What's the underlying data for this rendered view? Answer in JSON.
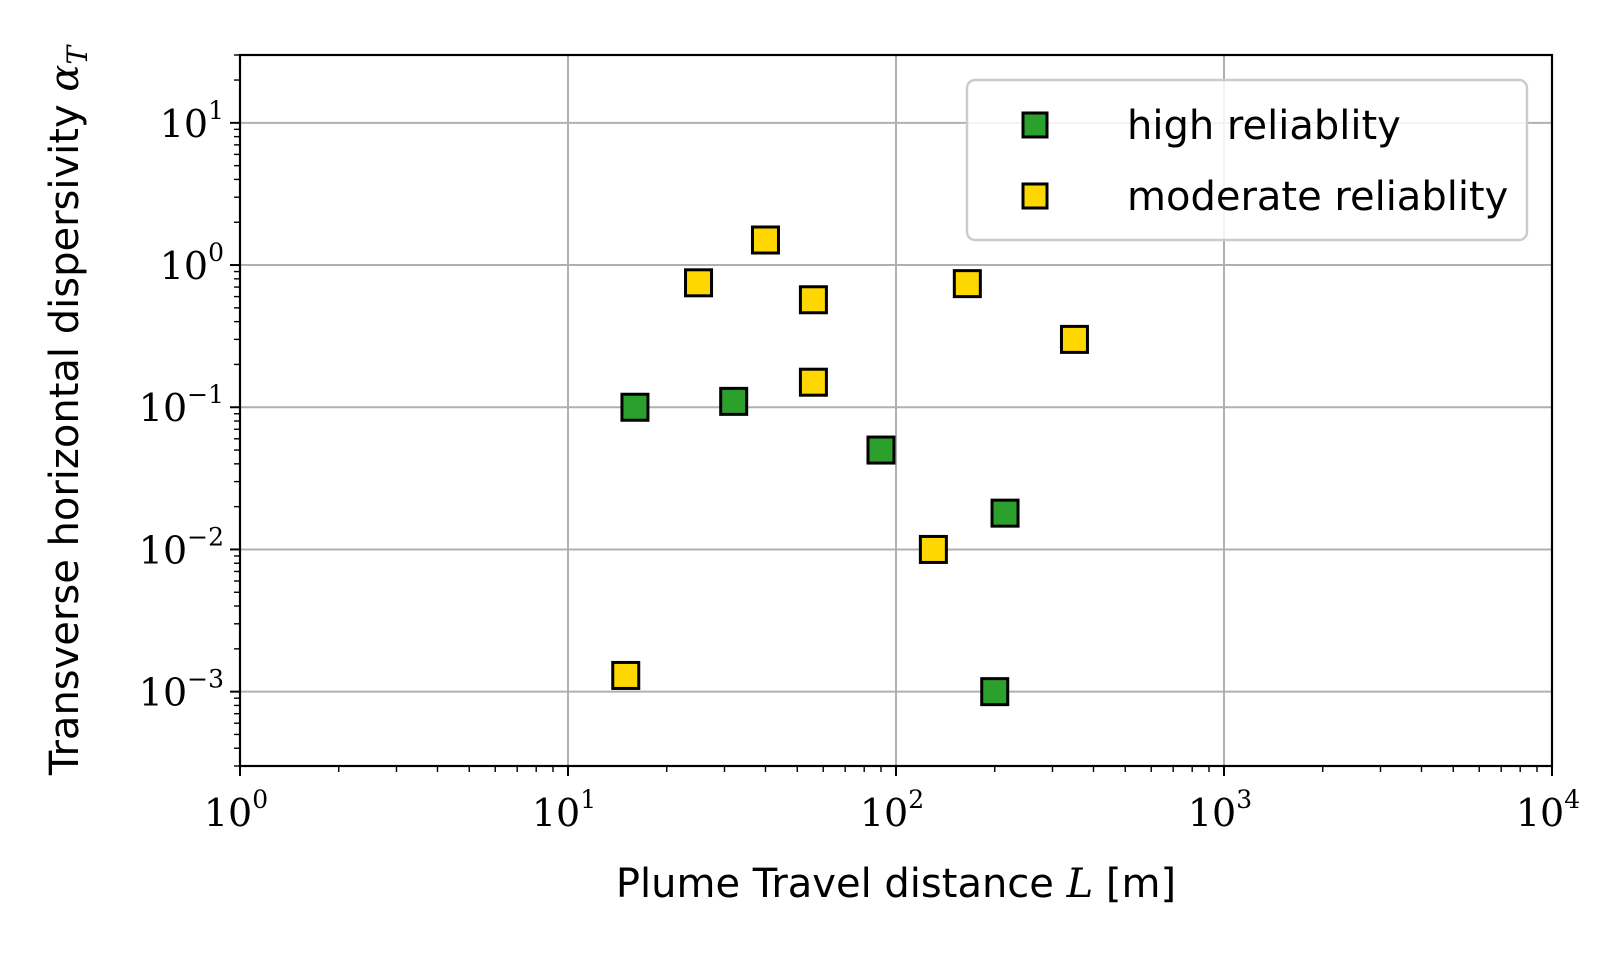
{
  "chart_data": {
    "type": "scatter",
    "title": "",
    "xlabel": {
      "prefix": "Plume Travel distance ",
      "symbol": "L",
      "suffix": " [m]"
    },
    "ylabel": {
      "prefix": "Transverse horizontal dispersivity ",
      "symbol": "α",
      "subscript": "T"
    },
    "x_scale": "log",
    "y_scale": "log",
    "xlim": [
      1,
      10000
    ],
    "ylim": [
      0.0003,
      30
    ],
    "grid": true,
    "legend_position": "top-right",
    "x_ticks": [
      {
        "value": 1,
        "base": "10",
        "exp": "0"
      },
      {
        "value": 10,
        "base": "10",
        "exp": "1"
      },
      {
        "value": 100,
        "base": "10",
        "exp": "2"
      },
      {
        "value": 1000,
        "base": "10",
        "exp": "3"
      },
      {
        "value": 10000,
        "base": "10",
        "exp": "4"
      }
    ],
    "y_ticks": [
      {
        "value": 0.001,
        "base": "10",
        "exp": "−3"
      },
      {
        "value": 0.01,
        "base": "10",
        "exp": "−2"
      },
      {
        "value": 0.1,
        "base": "10",
        "exp": "−1"
      },
      {
        "value": 1,
        "base": "10",
        "exp": "0"
      },
      {
        "value": 10,
        "base": "10",
        "exp": "1"
      }
    ],
    "series": [
      {
        "name": "high reliablity",
        "color": "#2ca02c",
        "marker": "square",
        "points": [
          {
            "x": 16,
            "y": 0.1
          },
          {
            "x": 32,
            "y": 0.11
          },
          {
            "x": 90,
            "y": 0.05
          },
          {
            "x": 215,
            "y": 0.018
          },
          {
            "x": 200,
            "y": 0.001
          }
        ]
      },
      {
        "name": "moderate reliablity",
        "color": "#ffd700",
        "marker": "square",
        "points": [
          {
            "x": 40,
            "y": 1.5
          },
          {
            "x": 25,
            "y": 0.75
          },
          {
            "x": 56,
            "y": 0.57
          },
          {
            "x": 165,
            "y": 0.74
          },
          {
            "x": 350,
            "y": 0.3
          },
          {
            "x": 56,
            "y": 0.15
          },
          {
            "x": 130,
            "y": 0.01
          },
          {
            "x": 15,
            "y": 0.0013
          }
        ]
      }
    ]
  }
}
